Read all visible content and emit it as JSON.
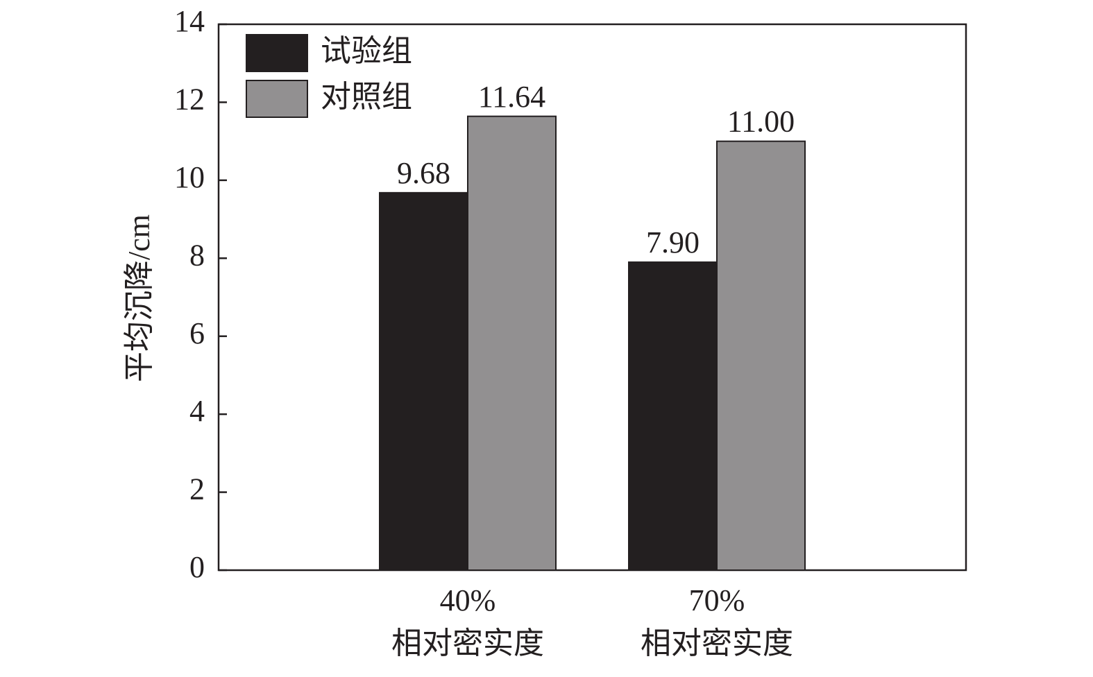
{
  "chart_data": {
    "type": "bar",
    "y_label": "平均沉降/cm",
    "categories": [
      [
        "40%",
        "相对密实度"
      ],
      [
        "70%",
        "相对密实度"
      ]
    ],
    "series": [
      {
        "name": "试验组",
        "color": "#231f20",
        "values": [
          9.68,
          7.9
        ],
        "value_labels": [
          "9.68",
          "7.90"
        ]
      },
      {
        "name": "对照组",
        "color": "#929091",
        "values": [
          11.64,
          11.0
        ],
        "value_labels": [
          "11.64",
          "11.00"
        ]
      }
    ],
    "ylim": [
      0,
      14
    ],
    "yticks": [
      0,
      2,
      4,
      6,
      8,
      10,
      12,
      14
    ],
    "grid": false,
    "legend": "upper left"
  }
}
